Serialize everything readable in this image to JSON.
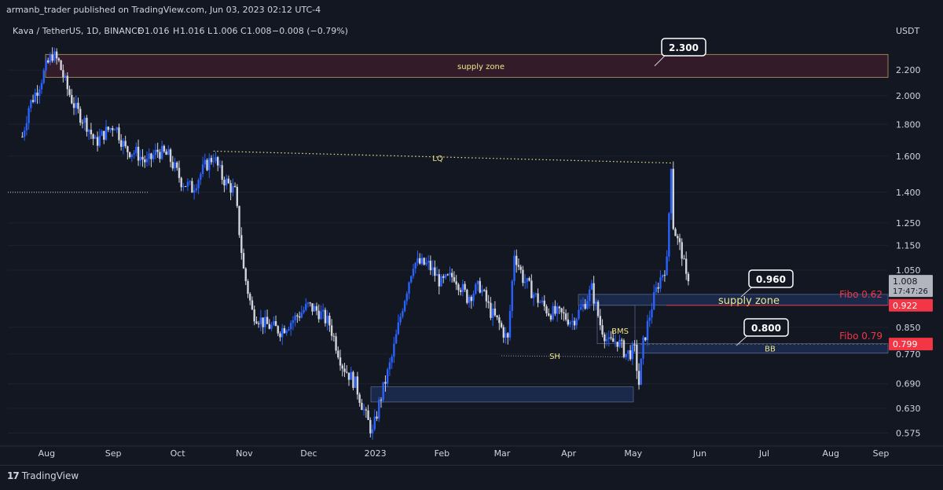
{
  "publisher_line": "armanb_trader published on TradingView.com, Jun 03, 2023 02:12 UTC-4",
  "footer": {
    "logo_text": "TradingView",
    "logo_mark": "17"
  },
  "chart_data": {
    "type": "candlestick",
    "symbol_line": "Kava / TetherUS, 1D, BINANCE",
    "ohlc": {
      "o_label": "O",
      "o": "1.016",
      "h_label": "H",
      "h": "1.016",
      "l_label": "L",
      "l": "1.006",
      "c_label": "C",
      "c": "1.008",
      "change": "−0.008 (−0.79%)"
    },
    "currency": "USDT",
    "y_scale": "log",
    "ylim": [
      0.545,
      2.45
    ],
    "y_ticks": [
      2.2,
      2.0,
      1.8,
      1.6,
      1.4,
      1.25,
      1.15,
      1.05,
      0.85,
      0.77,
      0.69,
      0.63,
      0.575
    ],
    "y_tick_labels": [
      "2.200",
      "2.000",
      "1.800",
      "1.600",
      "1.400",
      "1.250",
      "1.150",
      "1.050",
      "0.850",
      "0.770",
      "0.690",
      "0.630",
      "0.575"
    ],
    "x_tick_labels": [
      "Aug",
      "Sep",
      "Oct",
      "Nov",
      "Dec",
      "2023",
      "Feb",
      "Mar",
      "Apr",
      "May",
      "Jun",
      "Jul",
      "Aug",
      "Sep"
    ],
    "price_series": [
      [
        "2022-07-28",
        1.72
      ],
      [
        "2022-07-31",
        1.92
      ],
      [
        "2022-08-04",
        2.05
      ],
      [
        "2022-08-08",
        2.22
      ],
      [
        "2022-08-11",
        2.33
      ],
      [
        "2022-08-14",
        2.26
      ],
      [
        "2022-08-18",
        2.05
      ],
      [
        "2022-08-22",
        1.9
      ],
      [
        "2022-08-27",
        1.8
      ],
      [
        "2022-08-31",
        1.68
      ],
      [
        "2022-09-04",
        1.74
      ],
      [
        "2022-09-09",
        1.8
      ],
      [
        "2022-09-14",
        1.64
      ],
      [
        "2022-09-19",
        1.62
      ],
      [
        "2022-09-24",
        1.56
      ],
      [
        "2022-09-29",
        1.63
      ],
      [
        "2022-10-04",
        1.6
      ],
      [
        "2022-10-10",
        1.46
      ],
      [
        "2022-10-15",
        1.42
      ],
      [
        "2022-10-21",
        1.54
      ],
      [
        "2022-10-25",
        1.6
      ],
      [
        "2022-10-29",
        1.48
      ],
      [
        "2022-11-04",
        1.4
      ],
      [
        "2022-11-08",
        1.05
      ],
      [
        "2022-11-12",
        0.9
      ],
      [
        "2022-11-18",
        0.86
      ],
      [
        "2022-11-25",
        0.84
      ],
      [
        "2022-12-02",
        0.88
      ],
      [
        "2022-12-08",
        0.92
      ],
      [
        "2022-12-13",
        0.9
      ],
      [
        "2022-12-18",
        0.86
      ],
      [
        "2022-12-24",
        0.74
      ],
      [
        "2022-12-30",
        0.69
      ],
      [
        "2023-01-04",
        0.61
      ],
      [
        "2023-01-07",
        0.575
      ],
      [
        "2023-01-10",
        0.64
      ],
      [
        "2023-01-16",
        0.76
      ],
      [
        "2023-01-21",
        0.92
      ],
      [
        "2023-01-26",
        1.08
      ],
      [
        "2023-02-02",
        1.07
      ],
      [
        "2023-02-08",
        1.0
      ],
      [
        "2023-02-14",
        1.03
      ],
      [
        "2023-02-20",
        0.95
      ],
      [
        "2023-02-26",
        0.99
      ],
      [
        "2023-03-03",
        0.9
      ],
      [
        "2023-03-07",
        0.86
      ],
      [
        "2023-03-11",
        0.81
      ],
      [
        "2023-03-14",
        1.12
      ],
      [
        "2023-03-18",
        1.02
      ],
      [
        "2023-03-24",
        0.95
      ],
      [
        "2023-03-30",
        0.9
      ],
      [
        "2023-04-05",
        0.89
      ],
      [
        "2023-04-10",
        0.87
      ],
      [
        "2023-04-15",
        0.92
      ],
      [
        "2023-04-19",
        0.98
      ],
      [
        "2023-04-23",
        0.86
      ],
      [
        "2023-04-27",
        0.8
      ],
      [
        "2023-05-01",
        0.81
      ],
      [
        "2023-05-05",
        0.77
      ],
      [
        "2023-05-09",
        0.78
      ],
      [
        "2023-05-11",
        0.69
      ],
      [
        "2023-05-13",
        0.8
      ],
      [
        "2023-05-17",
        0.92
      ],
      [
        "2023-05-20",
        1.0
      ],
      [
        "2023-05-24",
        1.08
      ],
      [
        "2023-05-26",
        1.56
      ],
      [
        "2023-05-27",
        1.24
      ],
      [
        "2023-05-29",
        1.17
      ],
      [
        "2023-05-31",
        1.12
      ],
      [
        "2023-06-02",
        1.016
      ],
      [
        "2023-06-03",
        1.008
      ]
    ],
    "annotations": {
      "supply_zone_top": {
        "label": "supply zone",
        "y_top": 2.33,
        "y_bottom": 2.14
      },
      "lq": {
        "label": "LQ"
      },
      "sh": {
        "label": "SH"
      },
      "bms": {
        "label": "BMS"
      },
      "supply_zone_mid": {
        "label": "supply zone"
      },
      "bb": {
        "label": "BB"
      },
      "fibo_062": {
        "label": "Fibo 0.62"
      },
      "fibo_079": {
        "label": "Fibo 0.79"
      },
      "callouts": [
        "2.300",
        "0.960",
        "0.800"
      ]
    },
    "price_badges": {
      "last": "1.008",
      "countdown": "17:47:26",
      "fibo_062": "0.922",
      "fibo_079": "0.799"
    },
    "colors": {
      "bull": "#2962ff",
      "bear": "#d1d4dc",
      "background": "#131722",
      "supply_zone": "#3b1c2b",
      "demand_zone": "#1c2b4f",
      "level_line": "#f0e68c",
      "fibo_text": "#f23645",
      "fibo_badge": "#f23645"
    }
  }
}
